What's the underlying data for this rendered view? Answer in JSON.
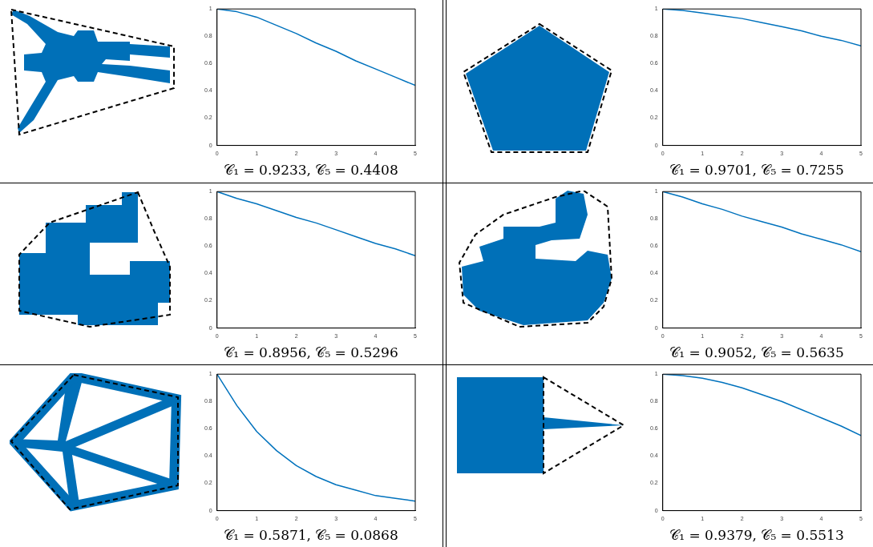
{
  "chart_data": [
    {
      "type": "line",
      "x": [
        0,
        0.5,
        1,
        1.5,
        2,
        2.5,
        3,
        3.5,
        4,
        4.5,
        5
      ],
      "xlim": [
        0,
        5
      ],
      "ylim": [
        0,
        1
      ],
      "xticks": [
        0,
        1,
        2,
        3,
        4,
        5
      ],
      "yticks": [
        0,
        0.2,
        0.4,
        0.6,
        0.8,
        1
      ],
      "marker": "none",
      "line_style": "solid",
      "legend": false,
      "series": [
        {
          "color": "#0072bd",
          "values": [
            1,
            0.98,
            0.94,
            0.88,
            0.82,
            0.75,
            0.69,
            0.62,
            0.56,
            0.5,
            0.44
          ]
        }
      ],
      "annotations": [
        "𝒞₁ = 0.9233,  𝒞₅ = 0.4408"
      ]
    },
    {
      "type": "line",
      "x": [
        0,
        0.5,
        1,
        1.5,
        2,
        2.5,
        3,
        3.5,
        4,
        4.5,
        5
      ],
      "xlim": [
        0,
        5
      ],
      "ylim": [
        0,
        1
      ],
      "xticks": [
        0,
        1,
        2,
        3,
        4,
        5
      ],
      "yticks": [
        0,
        0.2,
        0.4,
        0.6,
        0.8,
        1
      ],
      "marker": "none",
      "line_style": "solid",
      "legend": false,
      "series": [
        {
          "color": "#0072bd",
          "values": [
            1,
            0.99,
            0.97,
            0.95,
            0.93,
            0.9,
            0.87,
            0.84,
            0.8,
            0.77,
            0.73
          ]
        }
      ],
      "annotations": [
        "𝒞₁ = 0.9701,  𝒞₅ = 0.7255"
      ]
    },
    {
      "type": "line",
      "x": [
        0,
        0.5,
        1,
        1.5,
        2,
        2.5,
        3,
        3.5,
        4,
        4.5,
        5
      ],
      "xlim": [
        0,
        5
      ],
      "ylim": [
        0,
        1
      ],
      "xticks": [
        0,
        1,
        2,
        3,
        4,
        5
      ],
      "yticks": [
        0,
        0.2,
        0.4,
        0.6,
        0.8,
        1
      ],
      "marker": "none",
      "line_style": "solid",
      "legend": false,
      "series": [
        {
          "color": "#0072bd",
          "values": [
            1,
            0.95,
            0.91,
            0.86,
            0.81,
            0.77,
            0.72,
            0.67,
            0.62,
            0.58,
            0.53
          ]
        }
      ],
      "annotations": [
        "𝒞₁ = 0.8956,  𝒞₅ = 0.5296"
      ]
    },
    {
      "type": "line",
      "x": [
        0,
        0.5,
        1,
        1.5,
        2,
        2.5,
        3,
        3.5,
        4,
        4.5,
        5
      ],
      "xlim": [
        0,
        5
      ],
      "ylim": [
        0,
        1
      ],
      "xticks": [
        0,
        1,
        2,
        3,
        4,
        5
      ],
      "yticks": [
        0,
        0.2,
        0.4,
        0.6,
        0.8,
        1
      ],
      "marker": "none",
      "line_style": "solid",
      "legend": false,
      "series": [
        {
          "color": "#0072bd",
          "values": [
            1,
            0.96,
            0.91,
            0.87,
            0.82,
            0.78,
            0.74,
            0.69,
            0.65,
            0.61,
            0.56
          ]
        }
      ],
      "annotations": [
        "𝒞₁ = 0.9052,  𝒞₅ = 0.5635"
      ]
    },
    {
      "type": "line",
      "x": [
        0,
        0.5,
        1,
        1.5,
        2,
        2.5,
        3,
        3.5,
        4,
        4.5,
        5
      ],
      "xlim": [
        0,
        5
      ],
      "ylim": [
        0,
        1
      ],
      "xticks": [
        0,
        1,
        2,
        3,
        4,
        5
      ],
      "yticks": [
        0,
        0.2,
        0.4,
        0.6,
        0.8,
        1
      ],
      "marker": "none",
      "line_style": "solid",
      "legend": false,
      "series": [
        {
          "color": "#0072bd",
          "values": [
            1,
            0.77,
            0.58,
            0.44,
            0.33,
            0.25,
            0.19,
            0.15,
            0.11,
            0.09,
            0.07
          ]
        }
      ],
      "annotations": [
        "𝒞₁ = 0.5871,  𝒞₅ = 0.0868"
      ]
    },
    {
      "type": "line",
      "x": [
        0,
        0.5,
        1,
        1.5,
        2,
        2.5,
        3,
        3.5,
        4,
        4.5,
        5
      ],
      "xlim": [
        0,
        5
      ],
      "ylim": [
        0,
        1
      ],
      "xticks": [
        0,
        1,
        2,
        3,
        4,
        5
      ],
      "yticks": [
        0,
        0.2,
        0.4,
        0.6,
        0.8,
        1
      ],
      "marker": "none",
      "line_style": "solid",
      "legend": false,
      "series": [
        {
          "color": "#0072bd",
          "values": [
            1,
            0.99,
            0.97,
            0.94,
            0.9,
            0.85,
            0.8,
            0.74,
            0.68,
            0.62,
            0.55
          ]
        }
      ],
      "annotations": [
        "𝒞₁ = 0.9379,  𝒞₅ = 0.5513"
      ]
    }
  ]
}
